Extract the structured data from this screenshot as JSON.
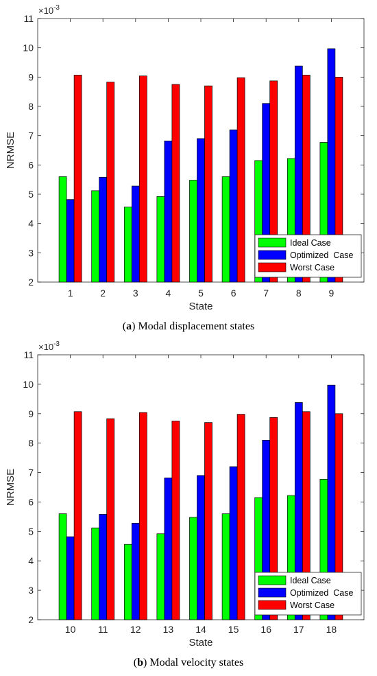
{
  "colors": {
    "ideal": "#00ff00",
    "optimized": "#0000ff",
    "worst": "#ff0000",
    "axis": "#262626",
    "frame": "#000000"
  },
  "captions": [
    {
      "label": "a",
      "prefix": "(",
      "suffix": ") ",
      "text": "Modal displacement states"
    },
    {
      "label": "b",
      "prefix": "(",
      "suffix": ") ",
      "text": "Modal velocity states"
    }
  ],
  "chart_data": [
    {
      "type": "bar",
      "xlabel": "State",
      "ylabel": "NRMSE",
      "exponent_label": "×10",
      "exponent": "-3",
      "ylim": [
        2,
        11
      ],
      "yticks": [
        2,
        3,
        4,
        5,
        6,
        7,
        8,
        9,
        10,
        11
      ],
      "grid": false,
      "legend_position": "bottom-right",
      "categories": [
        "1",
        "2",
        "3",
        "4",
        "5",
        "6",
        "7",
        "8",
        "9"
      ],
      "series": [
        {
          "name": "Ideal Case",
          "color": "#00ff00",
          "values": [
            5.6,
            5.12,
            4.56,
            4.92,
            5.48,
            5.6,
            6.15,
            6.22,
            6.77
          ]
        },
        {
          "name": "Optimized  Case",
          "color": "#0000ff",
          "values": [
            4.82,
            5.58,
            5.28,
            6.82,
            6.9,
            7.2,
            8.1,
            9.38,
            9.97
          ]
        },
        {
          "name": "Worst Case",
          "color": "#ff0000",
          "values": [
            9.07,
            8.83,
            9.04,
            8.75,
            8.7,
            8.98,
            8.87,
            9.07,
            9.0
          ]
        }
      ]
    },
    {
      "type": "bar",
      "xlabel": "State",
      "ylabel": "NRMSE",
      "exponent_label": "×10",
      "exponent": "-3",
      "ylim": [
        2,
        11
      ],
      "yticks": [
        2,
        3,
        4,
        5,
        6,
        7,
        8,
        9,
        10,
        11
      ],
      "grid": false,
      "legend_position": "bottom-right",
      "categories": [
        "10",
        "11",
        "12",
        "13",
        "14",
        "15",
        "16",
        "17",
        "18"
      ],
      "series": [
        {
          "name": "Ideal Case",
          "color": "#00ff00",
          "values": [
            5.6,
            5.12,
            4.56,
            4.92,
            5.48,
            5.6,
            6.15,
            6.22,
            6.77
          ]
        },
        {
          "name": "Optimized  Case",
          "color": "#0000ff",
          "values": [
            4.82,
            5.58,
            5.28,
            6.82,
            6.9,
            7.2,
            8.1,
            9.38,
            9.97
          ]
        },
        {
          "name": "Worst Case",
          "color": "#ff0000",
          "values": [
            9.07,
            8.83,
            9.04,
            8.75,
            8.7,
            8.98,
            8.87,
            9.07,
            9.0
          ]
        }
      ]
    }
  ]
}
